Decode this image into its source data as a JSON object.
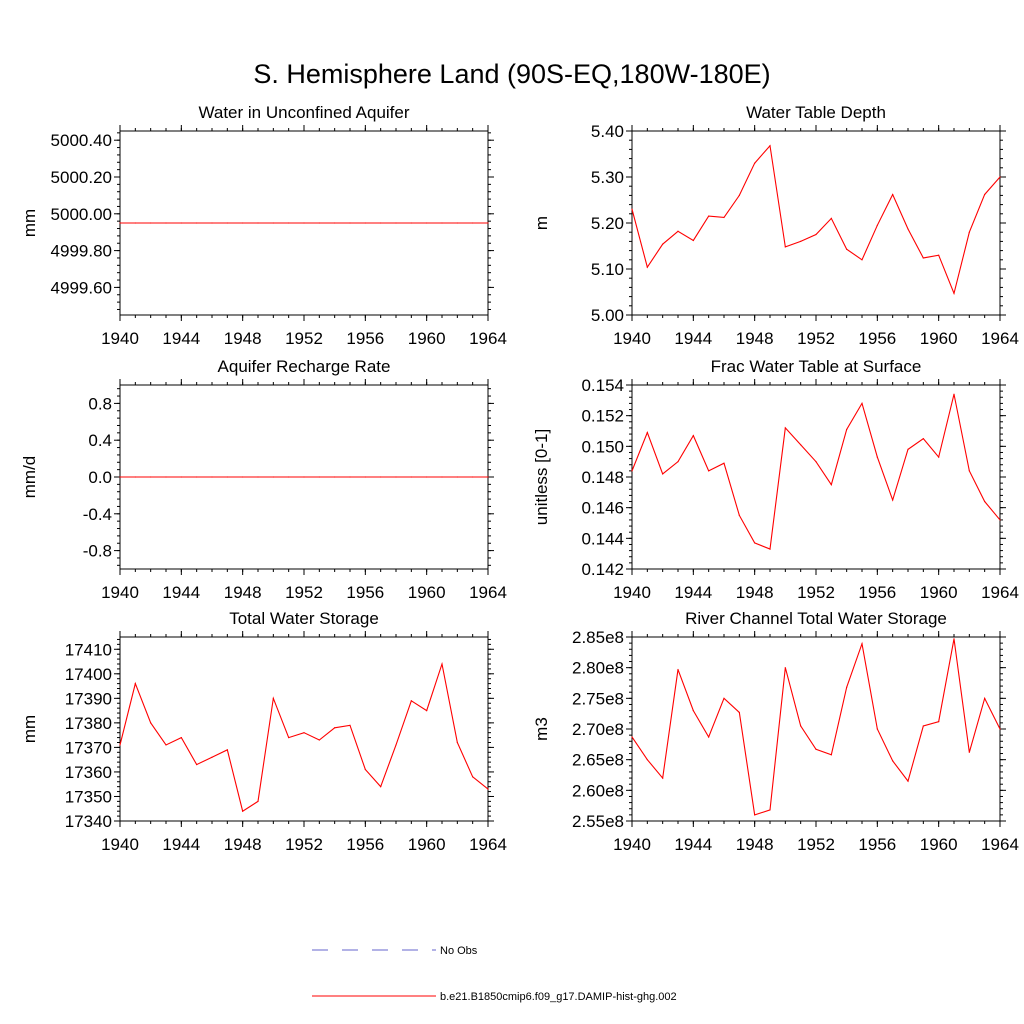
{
  "page": {
    "title": "S. Hemisphere Land (90S-EQ,180W-180E)"
  },
  "colors": {
    "model_line": "#ff0000",
    "obs_line": "#6666cc",
    "axis": "#000000"
  },
  "legend": {
    "items": [
      {
        "label": "No Obs",
        "style": "dashed",
        "color": "#6666cc"
      },
      {
        "label": "b.e21.B1850cmip6.f09_g17.DAMIP-hist-ghg.002",
        "style": "solid",
        "color": "#ff0000"
      }
    ]
  },
  "chart_data": [
    {
      "type": "line",
      "title": "Water in Unconfined Aquifer",
      "ylabel": "mm",
      "xlabel": "",
      "xlim": [
        1940,
        1964
      ],
      "ylim": [
        4999.45,
        5000.45
      ],
      "yticks": [
        4999.6,
        4999.8,
        5000.0,
        5000.2,
        5000.4
      ],
      "ytick_labels": [
        "4999.60",
        "4999.80",
        "5000.00",
        "5000.20",
        "5000.40"
      ],
      "xticks": [
        1940,
        1944,
        1948,
        1952,
        1956,
        1960,
        1964
      ],
      "x": [
        1940,
        1941,
        1942,
        1943,
        1944,
        1945,
        1946,
        1947,
        1948,
        1949,
        1950,
        1951,
        1952,
        1953,
        1954,
        1955,
        1956,
        1957,
        1958,
        1959,
        1960,
        1961,
        1962,
        1963,
        1964
      ],
      "series": [
        {
          "values": [
            4999.95,
            4999.95,
            4999.95,
            4999.95,
            4999.95,
            4999.95,
            4999.95,
            4999.95,
            4999.95,
            4999.95,
            4999.95,
            4999.95,
            4999.95,
            4999.95,
            4999.95,
            4999.95,
            4999.95,
            4999.95,
            4999.95,
            4999.95,
            4999.95,
            4999.95,
            4999.95,
            4999.95,
            4999.95
          ]
        }
      ]
    },
    {
      "type": "line",
      "title": "Water Table Depth",
      "ylabel": "m",
      "xlabel": "",
      "xlim": [
        1940,
        1964
      ],
      "ylim": [
        5.0,
        5.4
      ],
      "yticks": [
        5.0,
        5.1,
        5.2,
        5.3,
        5.4
      ],
      "ytick_labels": [
        "5.00",
        "5.10",
        "5.20",
        "5.30",
        "5.40"
      ],
      "xticks": [
        1940,
        1944,
        1948,
        1952,
        1956,
        1960,
        1964
      ],
      "x": [
        1940,
        1941,
        1942,
        1943,
        1944,
        1945,
        1946,
        1947,
        1948,
        1949,
        1950,
        1951,
        1952,
        1953,
        1954,
        1955,
        1956,
        1957,
        1958,
        1959,
        1960,
        1961,
        1962,
        1963,
        1964
      ],
      "series": [
        {
          "values": [
            5.23,
            5.104,
            5.154,
            5.182,
            5.162,
            5.215,
            5.212,
            5.26,
            5.33,
            5.368,
            5.148,
            5.16,
            5.175,
            5.21,
            5.143,
            5.12,
            5.195,
            5.262,
            5.187,
            5.124,
            5.13,
            5.047,
            5.18,
            5.262,
            5.3
          ]
        }
      ]
    },
    {
      "type": "line",
      "title": "Aquifer Recharge Rate",
      "ylabel": "mm/d",
      "xlabel": "",
      "xlim": [
        1940,
        1964
      ],
      "ylim": [
        -1.0,
        1.0
      ],
      "yticks": [
        -0.8,
        -0.4,
        0.0,
        0.4,
        0.8
      ],
      "ytick_labels": [
        "-0.8",
        "-0.4",
        "0.0",
        "0.4",
        "0.8"
      ],
      "xticks": [
        1940,
        1944,
        1948,
        1952,
        1956,
        1960,
        1964
      ],
      "x": [
        1940,
        1941,
        1942,
        1943,
        1944,
        1945,
        1946,
        1947,
        1948,
        1949,
        1950,
        1951,
        1952,
        1953,
        1954,
        1955,
        1956,
        1957,
        1958,
        1959,
        1960,
        1961,
        1962,
        1963,
        1964
      ],
      "series": [
        {
          "values": [
            0,
            0,
            0,
            0,
            0,
            0,
            0,
            0,
            0,
            0,
            0,
            0,
            0,
            0,
            0,
            0,
            0,
            0,
            0,
            0,
            0,
            0,
            0,
            0,
            0
          ]
        }
      ]
    },
    {
      "type": "line",
      "title": "Frac Water Table at Surface",
      "ylabel": "unitless [0-1]",
      "xlabel": "",
      "xlim": [
        1940,
        1964
      ],
      "ylim": [
        0.142,
        0.154
      ],
      "yticks": [
        0.142,
        0.144,
        0.146,
        0.148,
        0.15,
        0.152,
        0.154
      ],
      "ytick_labels": [
        "0.142",
        "0.144",
        "0.146",
        "0.148",
        "0.150",
        "0.152",
        "0.154"
      ],
      "xticks": [
        1940,
        1944,
        1948,
        1952,
        1956,
        1960,
        1964
      ],
      "x": [
        1940,
        1941,
        1942,
        1943,
        1944,
        1945,
        1946,
        1947,
        1948,
        1949,
        1950,
        1951,
        1952,
        1953,
        1954,
        1955,
        1956,
        1957,
        1958,
        1959,
        1960,
        1961,
        1962,
        1963,
        1964
      ],
      "series": [
        {
          "values": [
            0.1484,
            0.1509,
            0.1482,
            0.149,
            0.1507,
            0.1484,
            0.1489,
            0.1455,
            0.1437,
            0.1433,
            0.1512,
            0.1501,
            0.149,
            0.1475,
            0.1511,
            0.1528,
            0.1493,
            0.1465,
            0.1498,
            0.1505,
            0.1493,
            0.1534,
            0.1484,
            0.1464,
            0.1452
          ]
        }
      ]
    },
    {
      "type": "line",
      "title": "Total Water Storage",
      "ylabel": "mm",
      "xlabel": "",
      "xlim": [
        1940,
        1964
      ],
      "ylim": [
        17340,
        17415
      ],
      "yticks": [
        17340,
        17350,
        17360,
        17370,
        17380,
        17390,
        17400,
        17410
      ],
      "ytick_labels": [
        "17340",
        "17350",
        "17360",
        "17370",
        "17380",
        "17390",
        "17400",
        "17410"
      ],
      "xticks": [
        1940,
        1944,
        1948,
        1952,
        1956,
        1960,
        1964
      ],
      "x": [
        1940,
        1941,
        1942,
        1943,
        1944,
        1945,
        1946,
        1947,
        1948,
        1949,
        1950,
        1951,
        1952,
        1953,
        1954,
        1955,
        1956,
        1957,
        1958,
        1959,
        1960,
        1961,
        1962,
        1963,
        1964
      ],
      "series": [
        {
          "values": [
            17371,
            17396,
            17380,
            17371,
            17374,
            17363,
            17366,
            17369,
            17344,
            17348,
            17390,
            17374,
            17376,
            17373,
            17378,
            17379,
            17361,
            17354,
            17371,
            17389,
            17385,
            17404,
            17372,
            17358,
            17353
          ]
        }
      ]
    },
    {
      "type": "line",
      "title": "River Channel Total Water Storage",
      "ylabel": "m3",
      "xlabel": "",
      "xlim": [
        1940,
        1964
      ],
      "ylim": [
        255000000,
        285000000
      ],
      "yticks": [
        255000000,
        260000000,
        265000000,
        270000000,
        275000000,
        280000000,
        285000000
      ],
      "ytick_labels": [
        "2.55e8",
        "2.60e8",
        "2.65e8",
        "2.70e8",
        "2.75e8",
        "2.80e8",
        "2.85e8"
      ],
      "xticks": [
        1940,
        1944,
        1948,
        1952,
        1956,
        1960,
        1964
      ],
      "x": [
        1940,
        1941,
        1942,
        1943,
        1944,
        1945,
        1946,
        1947,
        1948,
        1949,
        1950,
        1951,
        1952,
        1953,
        1954,
        1955,
        1956,
        1957,
        1958,
        1959,
        1960,
        1961,
        1962,
        1963,
        1964
      ],
      "series": [
        {
          "values": [
            268700000,
            265000000,
            262000000,
            279700000,
            273000000,
            268700000,
            275000000,
            272700000,
            256000000,
            256800000,
            280000000,
            270500000,
            266700000,
            265800000,
            276800000,
            283900000,
            270000000,
            264800000,
            261500000,
            270500000,
            271200000,
            284700000,
            266200000,
            275000000,
            270000000
          ]
        }
      ]
    }
  ]
}
